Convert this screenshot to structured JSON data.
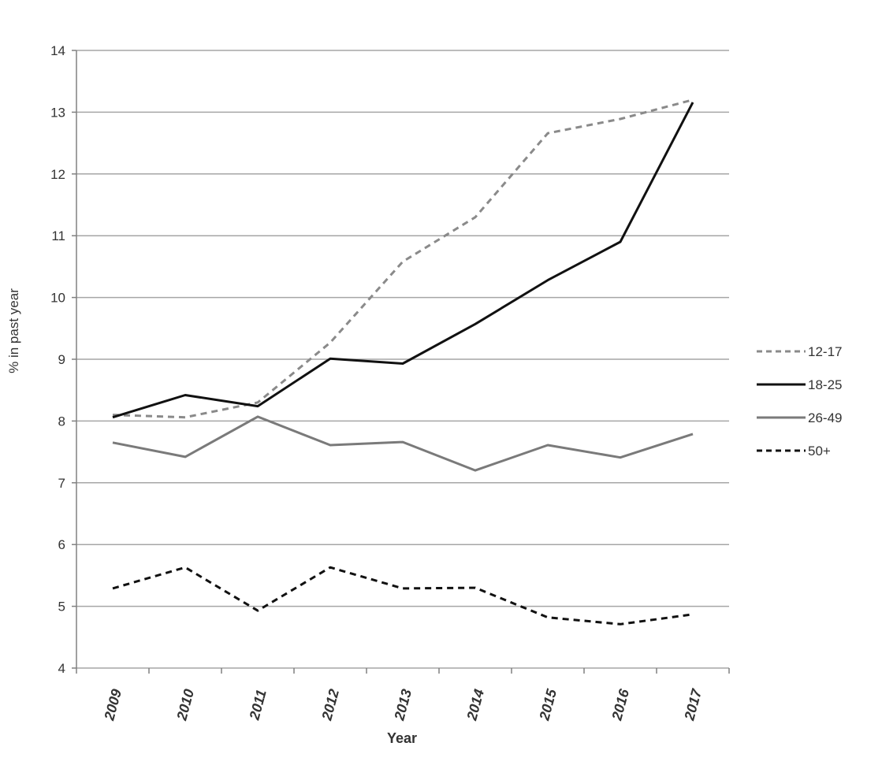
{
  "chart_data": {
    "type": "line",
    "title": "",
    "xlabel": "Year",
    "ylabel": "% in past year",
    "ylim": [
      4,
      14
    ],
    "yticks": [
      "4",
      "5",
      "6",
      "7",
      "8",
      "9",
      "10",
      "11",
      "12",
      "13",
      "14"
    ],
    "categories": [
      "2009",
      "2010",
      "2011",
      "2012",
      "2013",
      "2014",
      "2015",
      "2016",
      "2017"
    ],
    "grid": true,
    "legend_position": "right",
    "series": [
      {
        "name": "12-17",
        "color": "#8a8a8a",
        "style": "dashed",
        "values": [
          8.1,
          8.06,
          8.3,
          9.27,
          10.58,
          11.3,
          12.66,
          12.89,
          13.2
        ]
      },
      {
        "name": "18-25",
        "color": "#111111",
        "style": "solid",
        "values": [
          8.06,
          8.42,
          8.24,
          9.01,
          8.93,
          9.57,
          10.28,
          10.9,
          13.16
        ]
      },
      {
        "name": "26-49",
        "color": "#7a7a7a",
        "style": "solid",
        "values": [
          7.65,
          7.42,
          8.07,
          7.61,
          7.66,
          7.2,
          7.61,
          7.41,
          7.79
        ]
      },
      {
        "name": "50+",
        "color": "#111111",
        "style": "dashed",
        "values": [
          5.29,
          5.63,
          4.93,
          5.63,
          5.29,
          5.3,
          4.82,
          4.71,
          4.87
        ]
      }
    ]
  }
}
